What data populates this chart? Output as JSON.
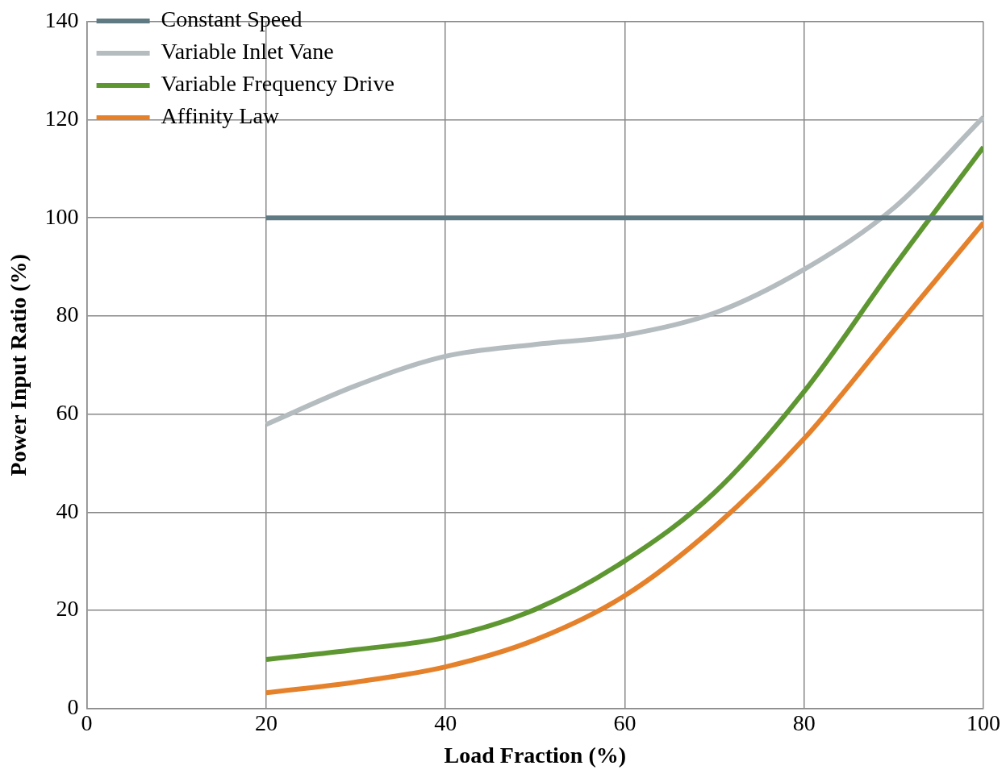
{
  "chart_data": {
    "type": "line",
    "xlabel": "Load Fraction (%)",
    "ylabel": "Power Input Ratio (%)",
    "xlim": [
      0,
      100
    ],
    "xticks": [
      0,
      20,
      40,
      60,
      80,
      100
    ],
    "ylim": [
      0,
      140
    ],
    "yticks": [
      0,
      20,
      40,
      60,
      80,
      100,
      120,
      140
    ],
    "grid": true,
    "legend": "top left",
    "marker": "none",
    "line_style": "solid",
    "series": [
      {
        "name": "Constant Speed",
        "color": "#5f7a83",
        "x": [
          20,
          100
        ],
        "values": [
          100,
          100
        ]
      },
      {
        "name": "Variable Inlet Vane",
        "color": "#b4bcbf",
        "x": [
          20,
          30,
          40,
          50,
          60,
          70,
          80,
          90,
          100
        ],
        "values": [
          57.9,
          65.8,
          71.8,
          74.2,
          76.1,
          80.6,
          89.5,
          102,
          120.5
        ]
      },
      {
        "name": "Variable Frequency Drive",
        "color": "#5e9732",
        "x": [
          20,
          30,
          40,
          50,
          60,
          70,
          80,
          90,
          100
        ],
        "values": [
          10,
          12,
          14.5,
          20.2,
          30.1,
          44,
          64.6,
          90,
          114.4
        ]
      },
      {
        "name": "Affinity Law",
        "color": "#e5812b",
        "x": [
          20,
          30,
          40,
          50,
          60,
          70,
          80,
          90,
          100
        ],
        "values": [
          3.2,
          5.4,
          8.5,
          14,
          23,
          37,
          55,
          77,
          99
        ]
      }
    ]
  }
}
